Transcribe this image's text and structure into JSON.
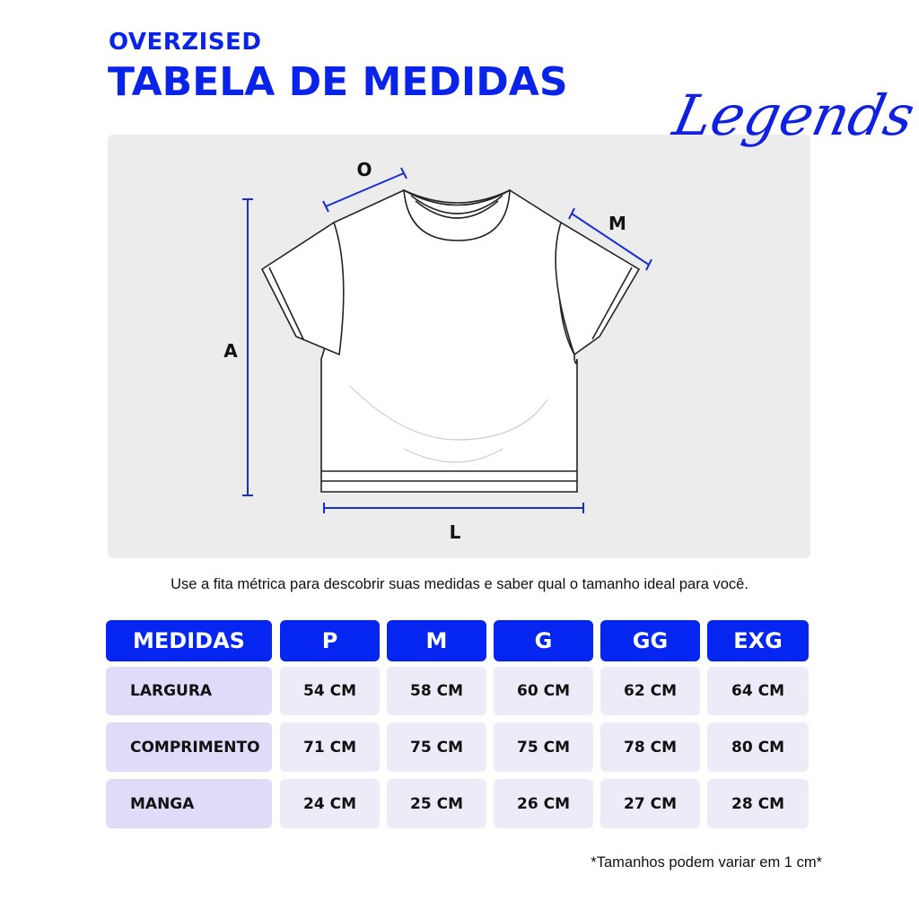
{
  "header": {
    "subtitle": "OVERZISED",
    "title": "TABELA DE MEDIDAS",
    "logo": "Legends"
  },
  "diagram": {
    "labels": {
      "o": "O",
      "m": "M",
      "a": "A",
      "l": "L"
    },
    "accent": "#1a2fd0"
  },
  "note": "Use a fita métrica para descobrir suas medidas e saber qual o tamanho ideal para você.",
  "table": {
    "headers": [
      "MEDIDAS",
      "P",
      "M",
      "G",
      "GG",
      "EXG"
    ],
    "rows": [
      {
        "label": "LARGURA",
        "values": [
          "54 CM",
          "58 CM",
          "60 CM",
          "62 CM",
          "64 CM"
        ]
      },
      {
        "label": "COMPRIMENTO",
        "values": [
          "71 CM",
          "75 CM",
          "75 CM",
          "78 CM",
          "80 CM"
        ]
      },
      {
        "label": "MANGA",
        "values": [
          "24 CM",
          "25 CM",
          "26 CM",
          "27 CM",
          "28 CM"
        ]
      }
    ]
  },
  "footnote": "*Tamanhos podem variar em 1 cm*",
  "colors": {
    "brand_blue": "#0525f0",
    "label_cell": "#dedcf8",
    "value_cell": "#ecebf7",
    "panel": "#ececed"
  }
}
